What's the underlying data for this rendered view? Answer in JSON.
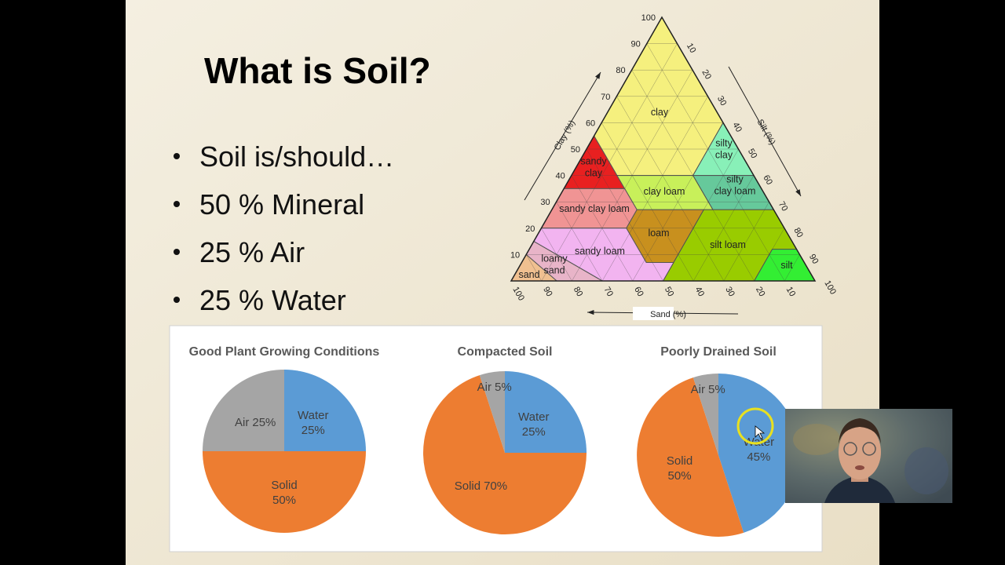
{
  "slide": {
    "title": "What is Soil?",
    "bullets": [
      "Soil is/should…",
      "50 % Mineral",
      "25 % Air",
      "25 % Water"
    ]
  },
  "texture_triangle": {
    "clay_axis_label": "Clay (%)",
    "silt_axis_label": "Silt (%)",
    "sand_axis_label": "Sand (%)",
    "clay_ticks": [
      10,
      20,
      30,
      40,
      50,
      60,
      70,
      80,
      90,
      100
    ],
    "silt_ticks": [
      10,
      20,
      30,
      40,
      50,
      60,
      70,
      80,
      90,
      100
    ],
    "sand_ticks": [
      100,
      90,
      80,
      70,
      60,
      50,
      40,
      30,
      20,
      10
    ],
    "regions": [
      {
        "lines": [
          "clay"
        ],
        "color": "#f5f07e"
      },
      {
        "lines": [
          "sandy",
          "clay"
        ],
        "color": "#e82020"
      },
      {
        "lines": [
          "silty",
          "clay"
        ],
        "color": "#88f0b8"
      },
      {
        "lines": [
          "silty",
          "clay loam"
        ],
        "color": "#66c99b"
      },
      {
        "lines": [
          "clay loam"
        ],
        "color": "#c8f05a"
      },
      {
        "lines": [
          "sandy clay loam"
        ],
        "color": "#f09494"
      },
      {
        "lines": [
          "loam"
        ],
        "color": "#c8901e"
      },
      {
        "lines": [
          "silt loam"
        ],
        "color": "#99cc00"
      },
      {
        "lines": [
          "silt"
        ],
        "color": "#33ee33"
      },
      {
        "lines": [
          "sandy loam"
        ],
        "color": "#f2b4f0"
      },
      {
        "lines": [
          "loamy",
          "sand"
        ],
        "color": "#e8b4c8"
      },
      {
        "lines": [
          "sand"
        ],
        "color": "#f0c090"
      }
    ]
  },
  "chart_data": [
    {
      "type": "pie",
      "title": "Good Plant Growing Conditions",
      "categories": [
        "Water",
        "Solid",
        "Air"
      ],
      "values": [
        25,
        50,
        25
      ],
      "value_labels": [
        "25%",
        "50%",
        "25%"
      ],
      "colors": [
        "#5b9bd5",
        "#ed7d31",
        "#a5a5a5"
      ]
    },
    {
      "type": "pie",
      "title": "Compacted Soil",
      "categories": [
        "Water",
        "Solid",
        "Air"
      ],
      "values": [
        25,
        70,
        5
      ],
      "value_labels": [
        "25%",
        "70%",
        "5%"
      ],
      "colors": [
        "#5b9bd5",
        "#ed7d31",
        "#a5a5a5"
      ]
    },
    {
      "type": "pie",
      "title": "Poorly Drained Soil",
      "categories": [
        "Water",
        "Solid",
        "Air"
      ],
      "values": [
        45,
        50,
        5
      ],
      "value_labels": [
        "45%",
        "50%",
        "5%"
      ],
      "colors": [
        "#5b9bd5",
        "#ed7d31",
        "#a5a5a5"
      ]
    }
  ]
}
